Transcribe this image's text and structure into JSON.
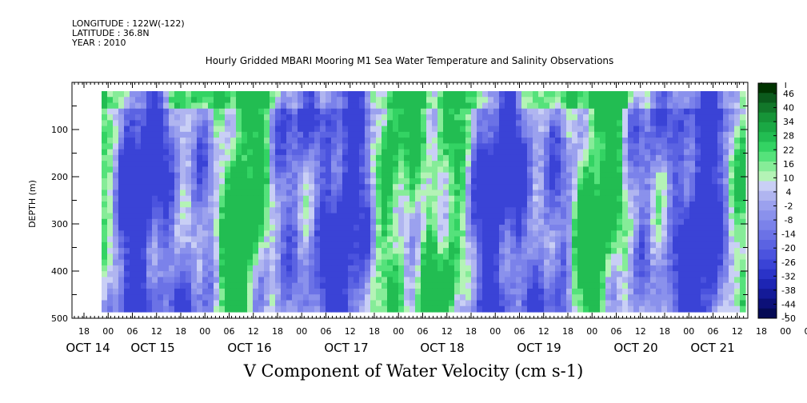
{
  "header": {
    "longitude": "LONGITUDE : 122W(-122)",
    "latitude": "LATITUDE : 36.8N",
    "year": "YEAR : 2010"
  },
  "chart_data": {
    "type": "heatmap",
    "title": "Hourly Gridded MBARI Mooring M1 Sea Water Temperature and Salinity Observations",
    "subtitle": "V Component of Water Velocity (cm s-1)",
    "ylabel": "DEPTH (m)",
    "xlabel": "",
    "y_ticks": [
      100,
      200,
      300,
      400,
      500
    ],
    "ylim": [
      500,
      0
    ],
    "hour_ticks": [
      "18",
      "00",
      "06",
      "12",
      "18",
      "00",
      "06",
      "12",
      "18",
      "00",
      "06",
      "12",
      "18",
      "00",
      "06",
      "12",
      "18",
      "00",
      "06",
      "12",
      "18",
      "00",
      "06",
      "12",
      "18",
      "00",
      "06",
      "12",
      "18",
      "00",
      "06",
      "12"
    ],
    "day_labels": [
      "OCT 14",
      "OCT 15",
      "OCT 16",
      "OCT 17",
      "OCT 18",
      "OCT 19",
      "OCT 20",
      "OCT 21"
    ],
    "colorbar": {
      "labels": [
        "46",
        "40",
        "34",
        "28",
        "22",
        "16",
        "10",
        "4",
        "-2",
        "-8",
        "-14",
        "-20",
        "-26",
        "-32",
        "-38",
        "-44",
        "-50"
      ],
      "colors": [
        "#003300",
        "#0b5a1c",
        "#12772a",
        "#169438",
        "#1aa844",
        "#22bd52",
        "#33d363",
        "#55e27b",
        "#86ec98",
        "#b4f3b6",
        "#c9cff5",
        "#b0b5f0",
        "#9ba1ee",
        "#8a91ec",
        "#7b82ea",
        "#6b72e6",
        "#5b63e2",
        "#4b53de",
        "#3a43d6",
        "#2a33c8",
        "#1d25b4",
        "#141a98",
        "#0c1078",
        "#050a55"
      ]
    },
    "data_range": [
      -50,
      46
    ]
  }
}
